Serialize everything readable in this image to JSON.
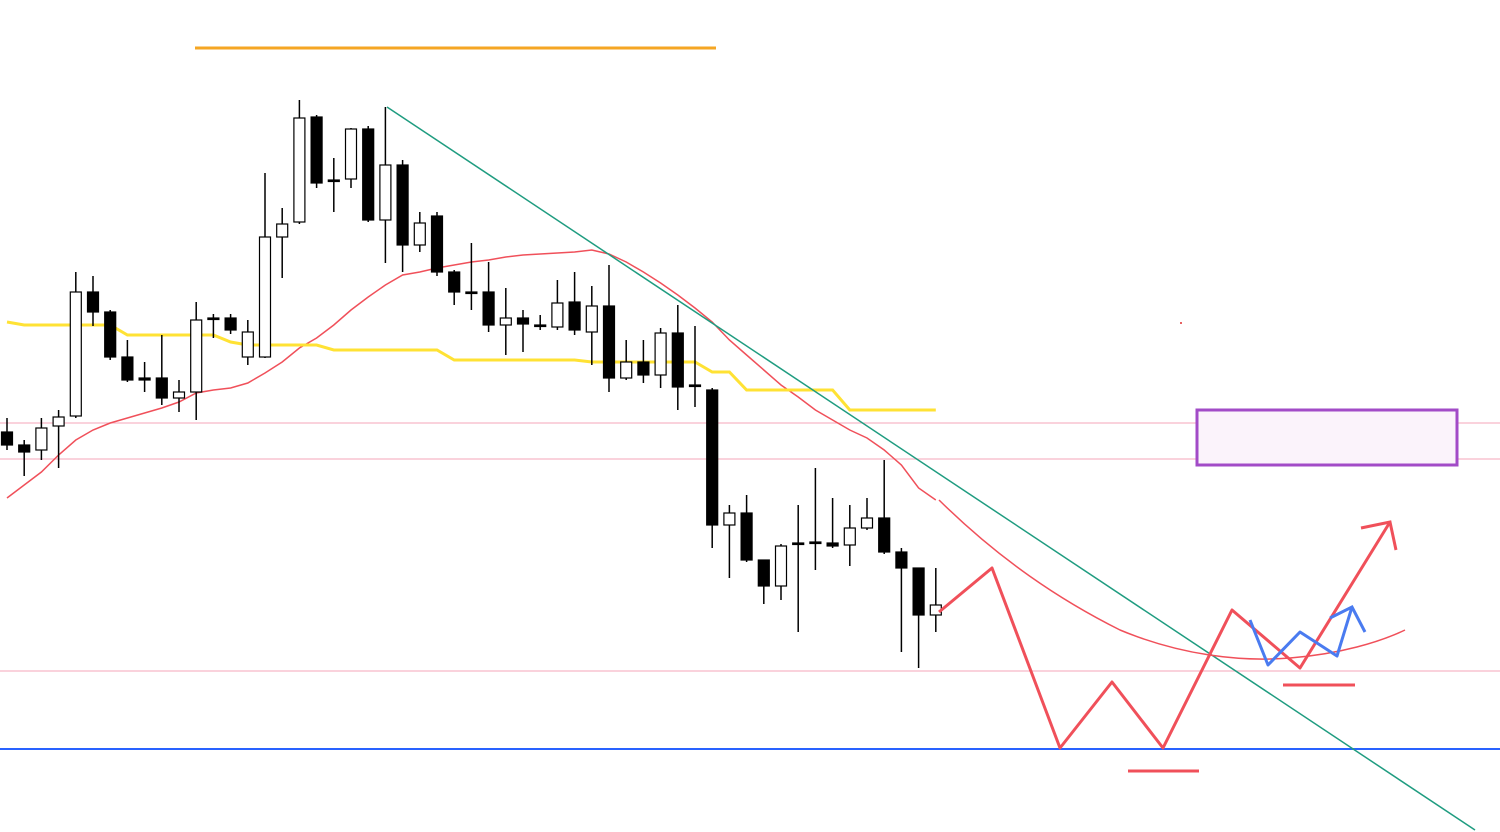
{
  "chart_data": {
    "type": "candlestick",
    "ylim": [
      0,
      832
    ],
    "candles": {
      "open": [
        400,
        387,
        382,
        406,
        416,
        540,
        520,
        475,
        454,
        454,
        434,
        440,
        514,
        514,
        475,
        475,
        595,
        610,
        715,
        652,
        653,
        703,
        612,
        667,
        587,
        616,
        560,
        540,
        540,
        507,
        514,
        507,
        505,
        530,
        500,
        526,
        454,
        470,
        457,
        499,
        447,
        442,
        307,
        319,
        272,
        246,
        289,
        290,
        289,
        287,
        304,
        314,
        280,
        264,
        217
      ],
      "high": [
        414,
        392,
        414,
        422,
        560,
        556,
        522,
        492,
        470,
        497,
        452,
        530,
        518,
        518,
        512,
        659,
        624,
        732,
        717,
        674,
        704,
        706,
        725,
        672,
        620,
        620,
        562,
        589,
        570,
        544,
        522,
        517,
        552,
        560,
        546,
        567,
        492,
        492,
        504,
        527,
        506,
        444,
        327,
        337,
        272,
        288,
        327,
        364,
        334,
        327,
        334,
        372,
        284,
        264,
        264
      ],
      "low": [
        382,
        356,
        372,
        364,
        414,
        506,
        472,
        450,
        440,
        427,
        420,
        412,
        494,
        498,
        467,
        474,
        554,
        608,
        644,
        620,
        644,
        610,
        569,
        560,
        580,
        556,
        527,
        522,
        500,
        477,
        480,
        502,
        502,
        497,
        467,
        440,
        452,
        449,
        444,
        422,
        425,
        284,
        254,
        270,
        228,
        232,
        200,
        262,
        284,
        266,
        302,
        278,
        180,
        164,
        200
      ],
      "close": [
        387,
        380,
        404,
        415,
        540,
        520,
        475,
        452,
        452,
        434,
        440,
        512,
        513,
        502,
        500,
        595,
        608,
        714,
        649,
        651,
        703,
        612,
        667,
        587,
        609,
        560,
        540,
        539,
        507,
        514,
        508,
        506,
        529,
        502,
        526,
        454,
        470,
        457,
        499,
        445,
        446,
        307,
        319,
        272,
        246,
        286,
        288,
        289,
        286,
        304,
        314,
        280,
        264,
        217,
        227
      ],
      "up_color": "#ffffff",
      "down_color": "#000000",
      "wick_color": "#000000"
    },
    "series": [
      {
        "color": "#f0505a",
        "values": [
          334,
          347,
          360,
          377,
          392,
          402,
          409,
          414,
          419,
          424,
          430,
          439,
          442,
          444,
          449,
          459,
          470,
          484,
          494,
          507,
          522,
          535,
          547,
          557,
          560,
          564,
          567,
          570,
          572,
          575,
          577,
          578,
          579,
          580,
          582,
          578,
          570,
          560,
          549,
          537,
          524,
          510,
          492,
          477,
          462,
          447,
          435,
          422,
          412,
          402,
          394,
          382,
          367,
          344,
          332
        ]
      },
      {
        "color": "#ffe234",
        "values": [
          510,
          507,
          507,
          507,
          507,
          507,
          507,
          497,
          497,
          497,
          497,
          497,
          497,
          490,
          487,
          487,
          487,
          487,
          487,
          482,
          482,
          482,
          482,
          482,
          482,
          482,
          472,
          472,
          472,
          472,
          472,
          472,
          472,
          472,
          470,
          470,
          470,
          470,
          470,
          470,
          470,
          460,
          460,
          442,
          442,
          442,
          442,
          442,
          442,
          422,
          422,
          422,
          422,
          422,
          422
        ]
      }
    ],
    "levels": [
      {
        "value": 409,
        "color": "#f7b8c6"
      },
      {
        "value": 373,
        "color": "#f7b8c6"
      },
      {
        "value": 161,
        "color": "#f7b8c6"
      },
      {
        "value": 83,
        "color": "#2962ff"
      }
    ]
  }
}
